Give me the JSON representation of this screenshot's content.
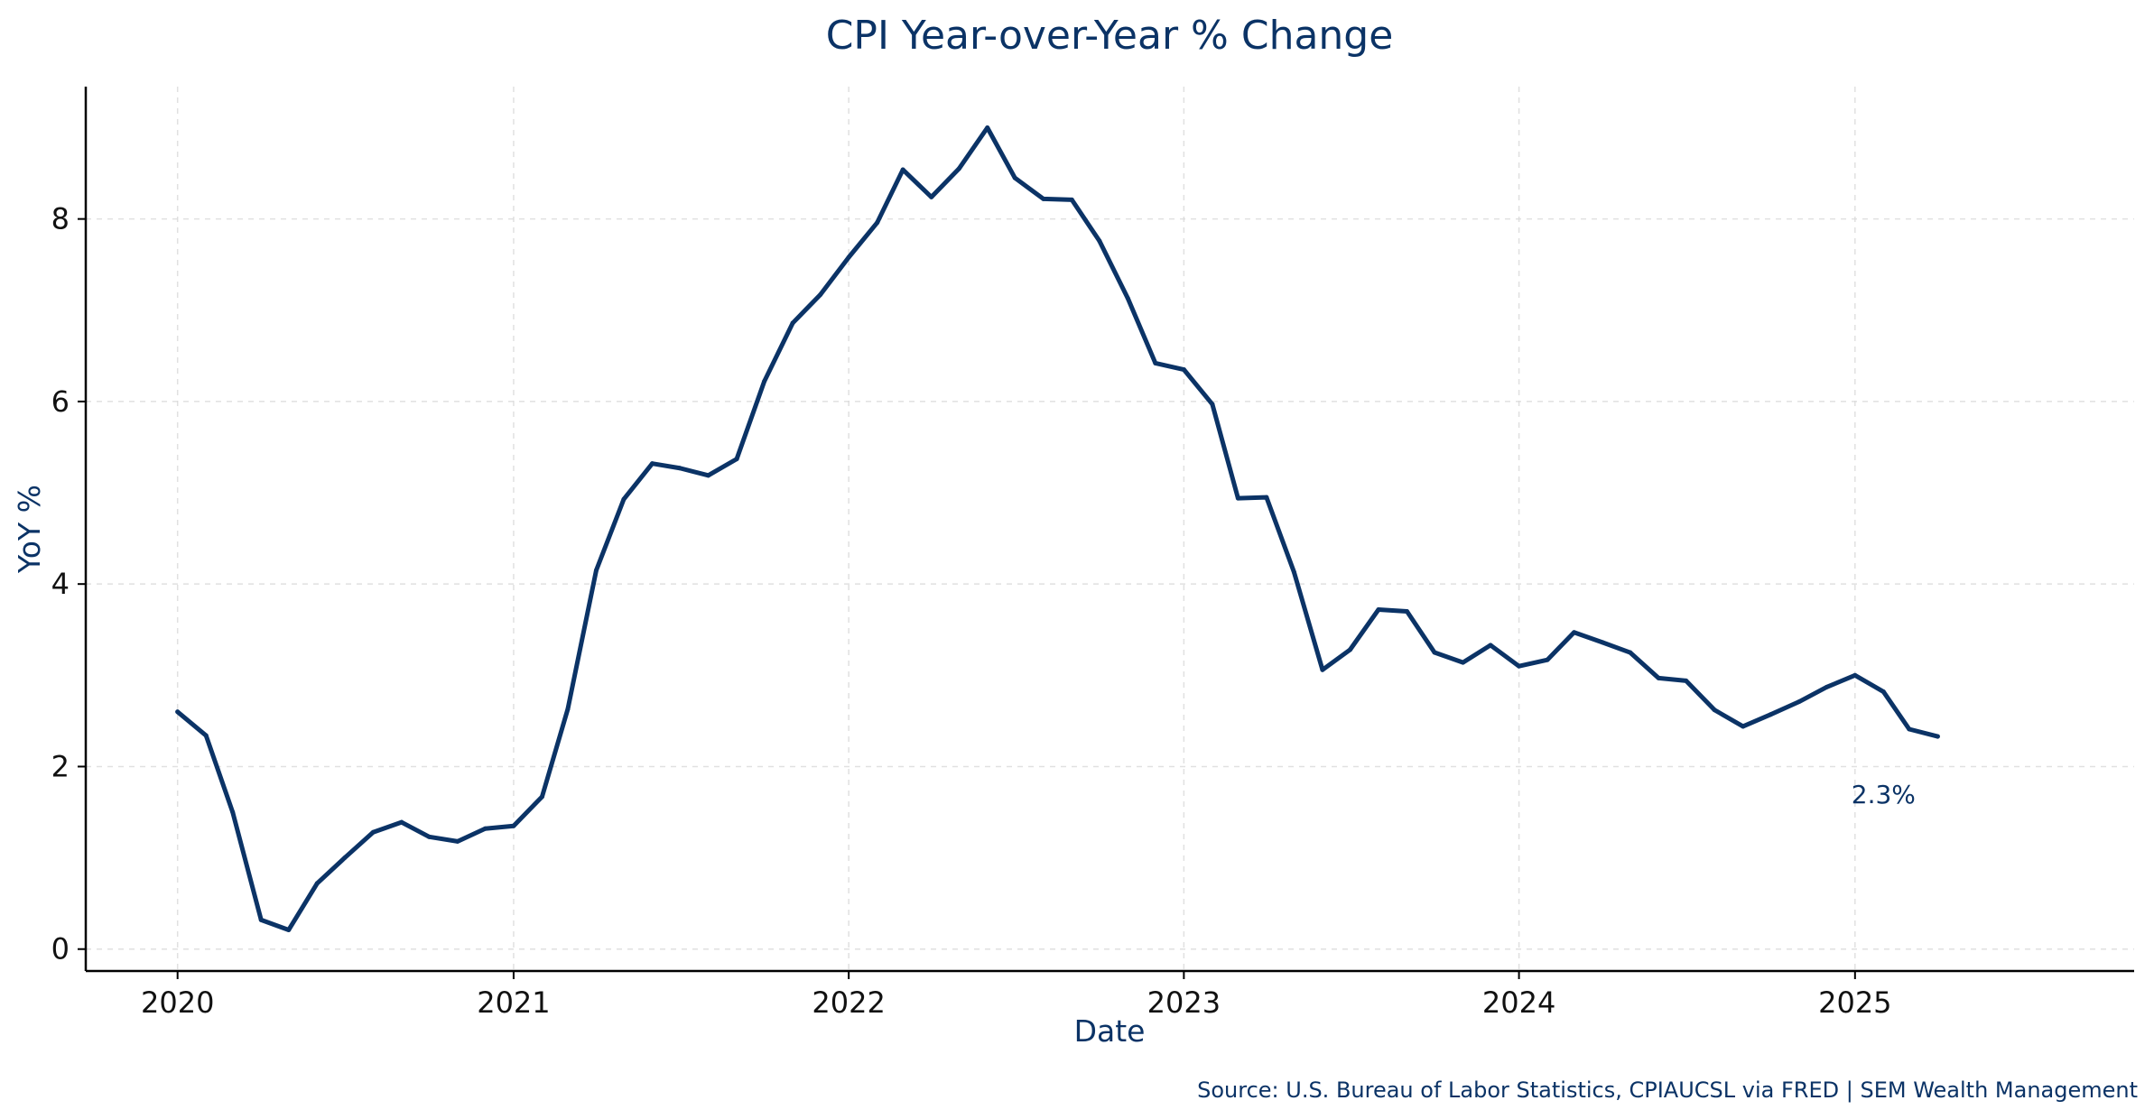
{
  "chart_data": {
    "type": "line",
    "title": "CPI Year-over-Year % Change",
    "xlabel": "Date",
    "ylabel": "YoY %",
    "source": "Source: U.S. Bureau of Labor Statistics, CPIAUCSL via FRED | SEM Wealth Management",
    "annotation": {
      "text": "2.3%",
      "x": "2025-02-01",
      "y": 1.7
    },
    "grid": true,
    "color": "#0b3366",
    "x_type": "date",
    "xlim": [
      "2019-09-23",
      "2025-11-01"
    ],
    "ylim": [
      -0.24,
      9.45
    ],
    "x_ticks": [
      {
        "value": "2020-01-01",
        "label": "2020"
      },
      {
        "value": "2021-01-01",
        "label": "2021"
      },
      {
        "value": "2022-01-01",
        "label": "2022"
      },
      {
        "value": "2023-01-01",
        "label": "2023"
      },
      {
        "value": "2024-01-01",
        "label": "2024"
      },
      {
        "value": "2025-01-01",
        "label": "2025"
      }
    ],
    "y_ticks": [
      {
        "value": 0,
        "label": "0"
      },
      {
        "value": 2,
        "label": "2"
      },
      {
        "value": 4,
        "label": "4"
      },
      {
        "value": 6,
        "label": "6"
      },
      {
        "value": 8,
        "label": "8"
      }
    ],
    "series": [
      {
        "x": [
          "2020-01-01",
          "2020-02-01",
          "2020-03-01",
          "2020-04-01",
          "2020-05-01",
          "2020-06-01",
          "2020-07-01",
          "2020-08-01",
          "2020-09-01",
          "2020-10-01",
          "2020-11-01",
          "2020-12-01",
          "2021-01-01",
          "2021-02-01",
          "2021-03-01",
          "2021-04-01",
          "2021-05-01",
          "2021-06-01",
          "2021-07-01",
          "2021-08-01",
          "2021-09-01",
          "2021-10-01",
          "2021-11-01",
          "2021-12-01",
          "2022-01-01",
          "2022-02-01",
          "2022-03-01",
          "2022-04-01",
          "2022-05-01",
          "2022-06-01",
          "2022-07-01",
          "2022-08-01",
          "2022-09-01",
          "2022-10-01",
          "2022-11-01",
          "2022-12-01",
          "2023-01-01",
          "2023-02-01",
          "2023-03-01",
          "2023-04-01",
          "2023-05-01",
          "2023-06-01",
          "2023-07-01",
          "2023-08-01",
          "2023-09-01",
          "2023-10-01",
          "2023-11-01",
          "2023-12-01",
          "2024-01-01",
          "2024-02-01",
          "2024-03-01",
          "2024-04-01",
          "2024-05-01",
          "2024-06-01",
          "2024-07-01",
          "2024-08-01",
          "2024-09-01",
          "2024-10-01",
          "2024-11-01",
          "2024-12-01",
          "2025-01-01",
          "2025-02-01",
          "2025-03-01",
          "2025-04-01"
        ],
        "y": [
          2.6,
          2.34,
          1.5,
          0.32,
          0.21,
          0.72,
          1.0,
          1.28,
          1.39,
          1.23,
          1.18,
          1.32,
          1.35,
          1.67,
          2.63,
          4.15,
          4.93,
          5.32,
          5.27,
          5.19,
          5.37,
          6.22,
          6.86,
          7.17,
          7.58,
          7.96,
          8.54,
          8.24,
          8.55,
          9.0,
          8.45,
          8.22,
          8.21,
          7.76,
          7.13,
          6.42,
          6.35,
          5.97,
          4.94,
          4.95,
          4.13,
          3.06,
          3.28,
          3.72,
          3.7,
          3.25,
          3.14,
          3.33,
          3.1,
          3.17,
          3.47,
          3.36,
          3.25,
          2.97,
          2.94,
          2.62,
          2.44,
          2.57,
          2.71,
          2.87,
          3.0,
          2.82,
          2.41,
          2.33
        ]
      }
    ]
  }
}
